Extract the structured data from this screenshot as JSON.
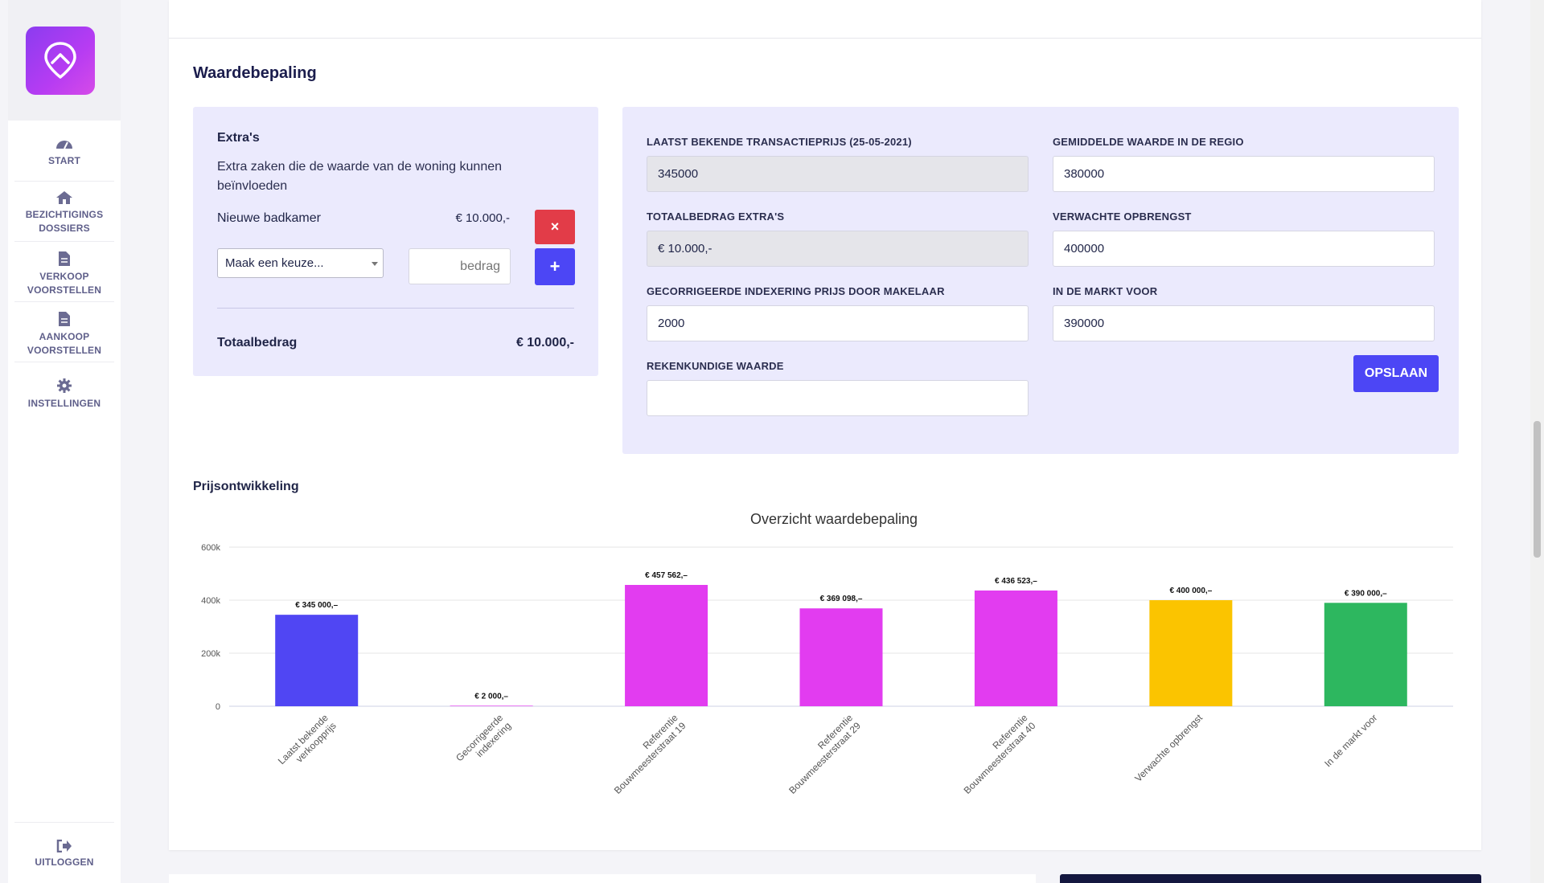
{
  "sidebar": {
    "items": [
      {
        "label": "START",
        "icon": "dashboard-icon"
      },
      {
        "label": "BEZICHTIGINGS\nDOSSIERS",
        "icon": "home-icon"
      },
      {
        "label": "VERKOOP\nVOORSTELLEN",
        "icon": "document-icon"
      },
      {
        "label": "AANKOOP\nVOORSTELLEN",
        "icon": "document-icon"
      },
      {
        "label": "INSTELLINGEN",
        "icon": "gear-icon"
      }
    ],
    "logout": {
      "label": "UITLOGGEN",
      "icon": "logout-icon"
    }
  },
  "section": {
    "title": "Waardebepaling"
  },
  "extras": {
    "title": "Extra's",
    "description": "Extra zaken die de waarde van de woning kunnen beïnvloeden",
    "items": [
      {
        "name": "Nieuwe badkamer",
        "amount": "€ 10.000,-"
      }
    ],
    "remove_label": "×",
    "add_label": "+",
    "select_value": "Maak een keuze...",
    "amount_placeholder": "bedrag",
    "total_label": "Totaalbedrag",
    "total_value": "€ 10.000,-"
  },
  "form": {
    "last_price": {
      "label": "LAATST BEKENDE TRANSACTIEPRIJS (25-05-2021)",
      "value": "345000"
    },
    "avg_value": {
      "label": "GEMIDDELDE WAARDE IN DE REGIO",
      "value": "380000"
    },
    "extras_total": {
      "label": "TOTAALBEDRAG EXTRA'S",
      "value": "€ 10.000,-"
    },
    "expected": {
      "label": "VERWACHTE OPBRENGST",
      "value": "400000"
    },
    "indexing": {
      "label": "GECORRIGEERDE INDEXERING PRIJS DOOR MAKELAAR",
      "value": "2000"
    },
    "market": {
      "label": "IN DE MARKT VOOR",
      "value": "390000"
    },
    "arith": {
      "label": "REKENKUNDIGE WAARDE",
      "value": ""
    },
    "save_label": "OPSLAAN"
  },
  "chart_heading": "Prijsontwikkeling",
  "chart_data": {
    "type": "bar",
    "title": "Overzicht waardebepaling",
    "categories": [
      [
        "Laatst bekende",
        "verkoopprijs"
      ],
      [
        "Gecorrigeerde",
        "indexering"
      ],
      [
        "Referentie",
        "Bouwmeesterstraat 19"
      ],
      [
        "Referentie",
        "Bouwmeesterstraat 29"
      ],
      [
        "Referentie",
        "Bouwmeesterstraat 40"
      ],
      [
        "Verwachte opbrengst"
      ],
      [
        "In de markt voor"
      ]
    ],
    "values": [
      345000,
      2000,
      457562,
      369098,
      436523,
      400000,
      390000
    ],
    "data_labels": [
      "€ 345 000,–",
      "€ 2 000,–",
      "€ 457 562,–",
      "€ 369 098,–",
      "€ 436 523,–",
      "€ 400 000,–",
      "€ 390 000,–"
    ],
    "colors": [
      "#5046f3",
      "#e23cf0",
      "#e23cf0",
      "#e23cf0",
      "#e23cf0",
      "#fbc400",
      "#2db75f"
    ],
    "ylim": [
      0,
      600000
    ],
    "yticks": [
      0,
      200000,
      400000,
      600000
    ],
    "ytick_labels": [
      "0",
      "200k",
      "400k",
      "600k"
    ],
    "grid": true,
    "legend": "none"
  }
}
